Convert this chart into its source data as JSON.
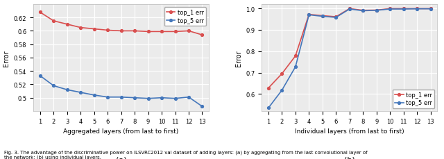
{
  "left": {
    "x": [
      1,
      2,
      3,
      4,
      5,
      6,
      7,
      8,
      9,
      10,
      11,
      12,
      13
    ],
    "top1": [
      0.628,
      0.615,
      0.61,
      0.605,
      0.603,
      0.601,
      0.6,
      0.6,
      0.599,
      0.599,
      0.599,
      0.6,
      0.594
    ],
    "top5": [
      0.533,
      0.518,
      0.512,
      0.508,
      0.504,
      0.501,
      0.501,
      0.5,
      0.499,
      0.5,
      0.499,
      0.501,
      0.487
    ],
    "xlabel": "Aggregated layers (from last to first)",
    "ylabel": "Error",
    "label_sub": "(a)",
    "ylim": [
      0.48,
      0.64
    ],
    "yticks": [
      0.5,
      0.52,
      0.54,
      0.56,
      0.58,
      0.6,
      0.62
    ],
    "legend_loc": "upper right"
  },
  "right": {
    "x": [
      1,
      2,
      3,
      4,
      5,
      6,
      7,
      8,
      9,
      10,
      11,
      12,
      13
    ],
    "top1": [
      0.628,
      0.695,
      0.778,
      0.972,
      0.966,
      0.961,
      0.999,
      0.991,
      0.992,
      0.999,
      0.999,
      0.999,
      0.999
    ],
    "top5": [
      0.535,
      0.618,
      0.727,
      0.97,
      0.963,
      0.958,
      0.997,
      0.989,
      0.991,
      0.997,
      0.997,
      0.998,
      0.998
    ],
    "xlabel": "Individual layers (from last to first)",
    "ylabel": "Error",
    "label_sub": "(b)",
    "ylim": [
      0.52,
      1.02
    ],
    "yticks": [
      0.6,
      0.7,
      0.8,
      0.9,
      1.0
    ],
    "legend_loc": "lower right"
  },
  "color_red": "#d94f4f",
  "color_blue": "#4477bb",
  "legend_top1": "top_1 err",
  "legend_top5": "top_5 err",
  "bg_color": "#ebebeb",
  "grid_color": "#ffffff",
  "fig_width": 6.4,
  "fig_height": 2.3,
  "caption": "Fig. 3. The advantage of the discriminative power on ILSVRC2012 val dataset of adding layers: (a) by aggregating from the last convolutional layer of",
  "caption2": "the network; (b) using individual layers."
}
